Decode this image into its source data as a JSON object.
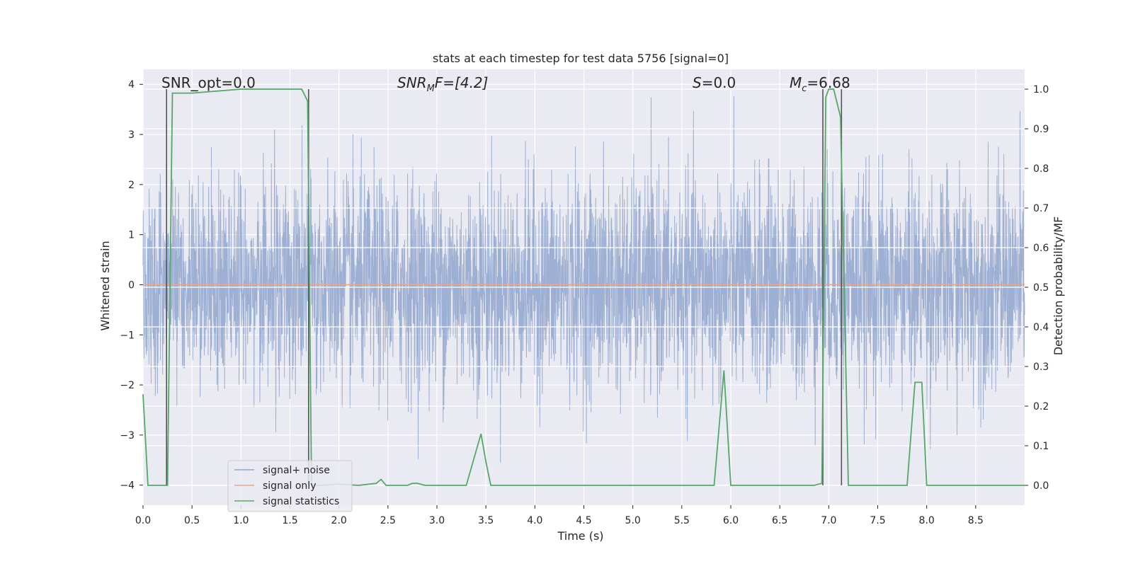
{
  "chart_data": {
    "type": "line",
    "title": "stats at each timestep for test data 5756 [signal=0]",
    "xlabel": "Time (s)",
    "ylabel": "Whitened strain",
    "y2label": "Detection probability/MF",
    "xlim": [
      0,
      9.0
    ],
    "ylim": [
      -4.4,
      4.3
    ],
    "y2lim": [
      -0.05,
      1.05
    ],
    "x_ticks": [
      0.0,
      0.5,
      1.0,
      1.5,
      2.0,
      2.5,
      3.0,
      3.5,
      4.0,
      4.5,
      5.0,
      5.5,
      6.0,
      6.5,
      7.0,
      7.5,
      8.0,
      8.5
    ],
    "x_tick_labels": [
      "0.0",
      "0.5",
      "1.0",
      "1.5",
      "2.0",
      "2.5",
      "3.0",
      "3.5",
      "4.0",
      "4.5",
      "5.0",
      "5.5",
      "6.0",
      "6.5",
      "7.0",
      "7.5",
      "8.0",
      "8.5"
    ],
    "y_ticks": [
      4,
      3,
      2,
      1,
      0,
      -1,
      -2,
      -3,
      -4
    ],
    "y_tick_labels": [
      "4",
      "3",
      "2",
      "1",
      "0",
      "−1",
      "−2",
      "−3",
      "−4"
    ],
    "y2_ticks": [
      1.0,
      0.9,
      0.8,
      0.7,
      0.6,
      0.5,
      0.4,
      0.3,
      0.2,
      0.1,
      0.0
    ],
    "y2_tick_labels": [
      "1.0",
      "0.9",
      "0.8",
      "0.7",
      "0.6",
      "0.5",
      "0.4",
      "0.3",
      "0.2",
      "0.1",
      "0.0"
    ],
    "grid": true,
    "legend_position": "lower-left",
    "annotations": {
      "snr_opt": "SNR_opt=0.0",
      "snr_mf_base": "SNR",
      "snr_mf_sub": "M",
      "snr_mf_rest": "F=[4.2]",
      "s_base": "S",
      "s_rest": "=0.0",
      "mc_base": "M",
      "mc_sub": "c",
      "mc_rest": "=6.68"
    },
    "series": [
      {
        "name": "signal+ noise",
        "color": "#8fa5cc",
        "description_values": "noise-like whitened strain, amplitude roughly ±2.5 with spikes to about ±4"
      },
      {
        "name": "signal only",
        "color": "#e8a58a",
        "values_constant": 0
      },
      {
        "name": "signal statistics",
        "color": "#55a868",
        "x": [
          0.0,
          0.05,
          0.1,
          0.15,
          0.2,
          0.25,
          0.3,
          0.35,
          0.5,
          1.0,
          1.3,
          1.62,
          1.68,
          1.72,
          1.76,
          1.8,
          2.0,
          2.2,
          2.38,
          2.43,
          2.48,
          2.7,
          2.75,
          2.8,
          2.88,
          2.95,
          3.3,
          3.45,
          3.5,
          3.55,
          3.64,
          3.7,
          4.5,
          5.0,
          5.5,
          5.83,
          5.93,
          6.0,
          6.1,
          6.5,
          6.85,
          6.93,
          6.97,
          7.0,
          7.05,
          7.12,
          7.2,
          7.3,
          7.8,
          7.88,
          7.95,
          8.0,
          8.5,
          9.0
        ],
        "y": [
          0.23,
          0.0,
          0.0,
          0.0,
          0.0,
          0.0,
          0.99,
          0.99,
          0.99,
          1.0,
          1.0,
          1.0,
          0.97,
          0.0,
          0.0,
          0.0,
          0.003,
          0.0,
          0.005,
          0.015,
          0.0,
          0.0,
          0.005,
          0.005,
          0.0,
          0.0,
          0.0,
          0.13,
          0.06,
          0.0,
          0.0,
          0.0,
          0.0,
          0.0,
          0.0,
          0.0,
          0.29,
          0.0,
          0.0,
          0.0,
          0.0,
          0.005,
          0.98,
          1.0,
          1.0,
          0.93,
          0.0,
          0.0,
          0.0,
          0.26,
          0.26,
          0.0,
          0.0,
          0.0
        ]
      }
    ],
    "vertical_lines_x": [
      0.24,
      1.69,
      6.94,
      7.13
    ]
  }
}
